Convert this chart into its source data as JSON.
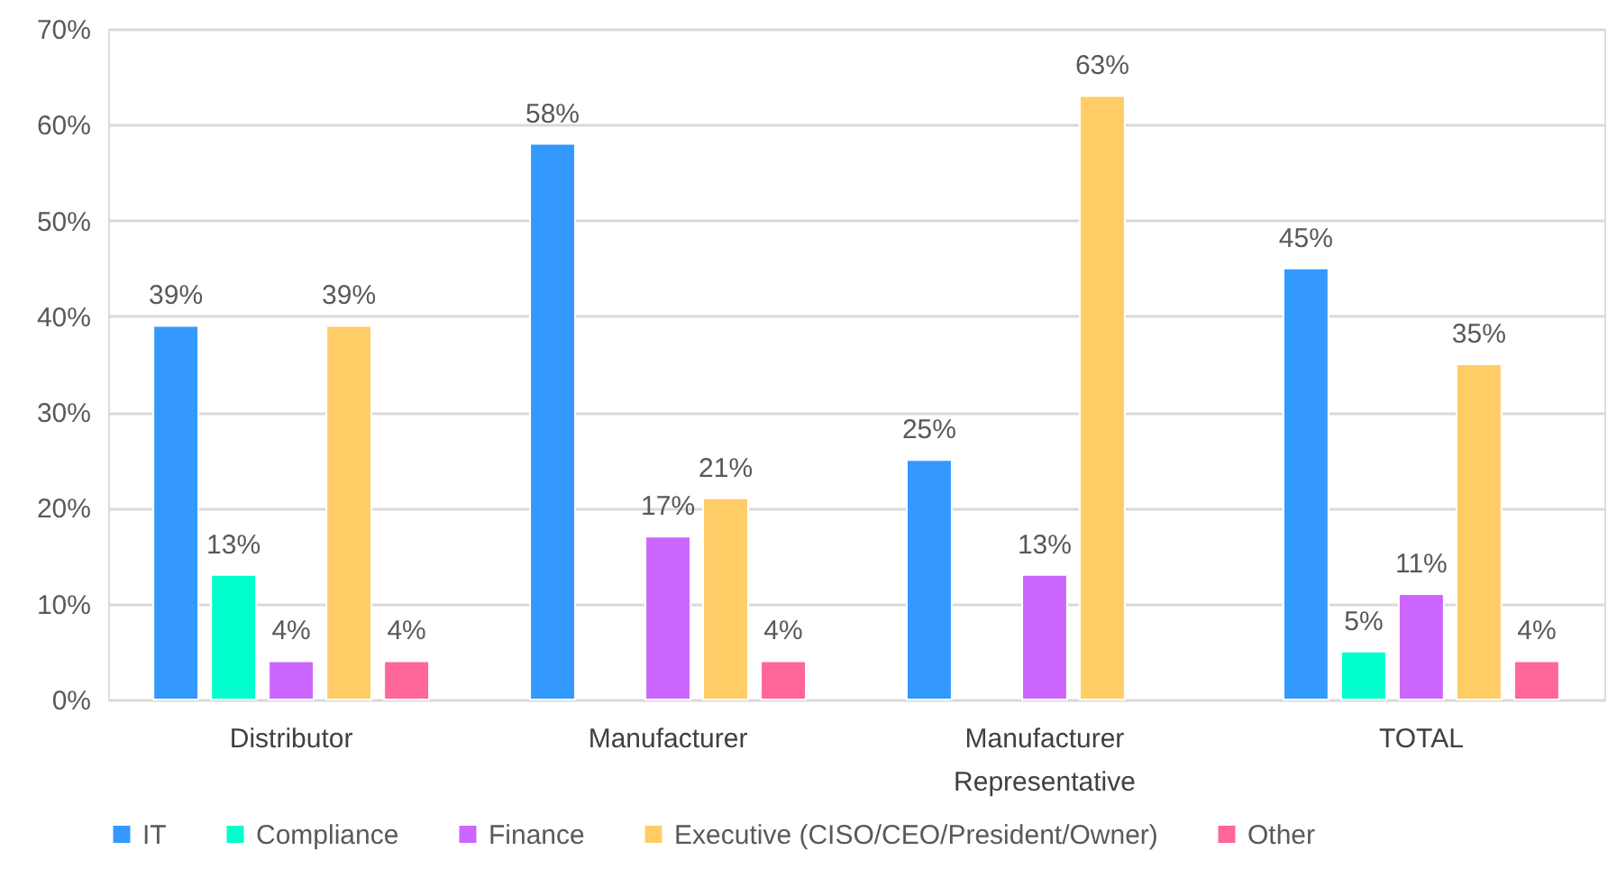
{
  "chart_data": {
    "type": "bar",
    "categories": [
      "Distributor",
      "Manufacturer",
      "Manufacturer Representative",
      "TOTAL"
    ],
    "series": [
      {
        "name": "IT",
        "color": "#3399ff",
        "values": [
          39,
          58,
          25,
          45
        ],
        "value_labels": [
          "39%",
          "58%",
          "25%",
          "45%"
        ]
      },
      {
        "name": "Compliance",
        "color": "#00ffcc",
        "values": [
          13,
          null,
          null,
          5
        ],
        "value_labels": [
          "13%",
          null,
          null,
          "5%"
        ]
      },
      {
        "name": "Finance",
        "color": "#cc66ff",
        "values": [
          4,
          17,
          13,
          11
        ],
        "value_labels": [
          "4%",
          "17%",
          "13%",
          "11%"
        ]
      },
      {
        "name": "Executive (CISO/CEO/President/Owner)",
        "color": "#ffcc66",
        "values": [
          39,
          21,
          63,
          35
        ],
        "value_labels": [
          "39%",
          "21%",
          "63%",
          "35%"
        ]
      },
      {
        "name": "Other",
        "color": "#ff6699",
        "values": [
          4,
          4,
          null,
          4
        ],
        "value_labels": [
          "4%",
          "4%",
          null,
          "4%"
        ]
      }
    ],
    "ylim": [
      0,
      70
    ],
    "yticks": [
      {
        "value": 0,
        "label": "0%"
      },
      {
        "value": 10,
        "label": "10%"
      },
      {
        "value": 20,
        "label": "20%"
      },
      {
        "value": 30,
        "label": "30%"
      },
      {
        "value": 40,
        "label": "40%"
      },
      {
        "value": 50,
        "label": "50%"
      },
      {
        "value": 60,
        "label": "60%"
      },
      {
        "value": 70,
        "label": "70%"
      }
    ],
    "grid": "y",
    "legend": "bottom"
  }
}
